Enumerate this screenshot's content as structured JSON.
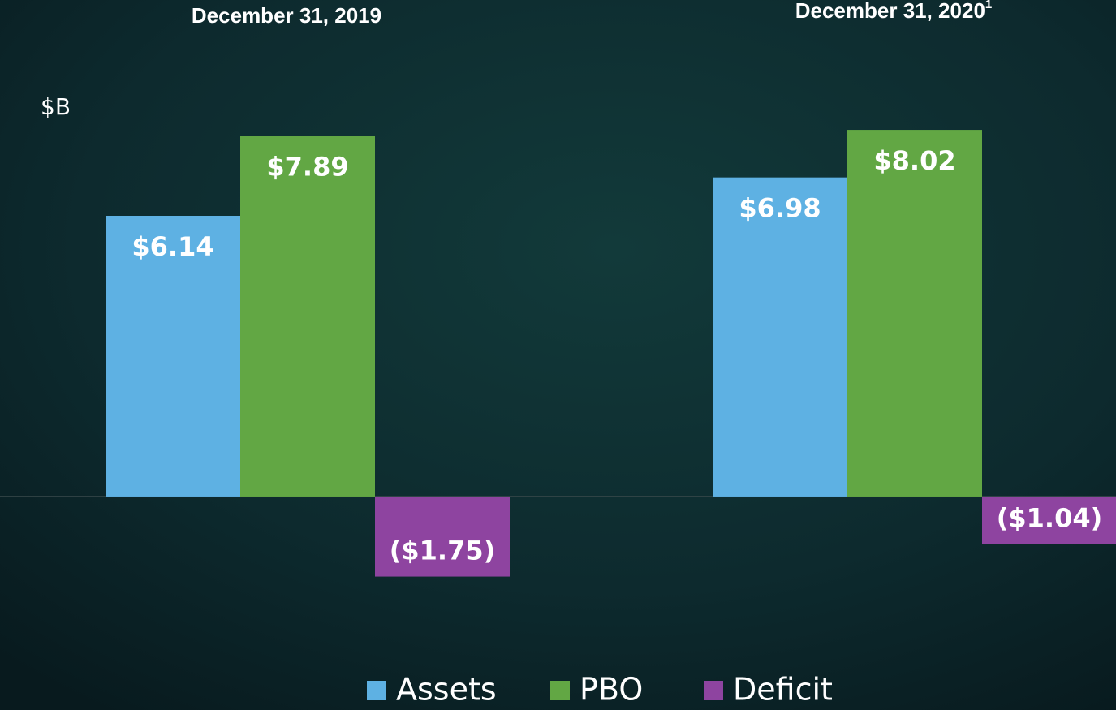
{
  "chart_data": {
    "type": "bar",
    "categories": [
      "December 31, 2019",
      "December 31, 2020"
    ],
    "category_footnotes": [
      null,
      "1"
    ],
    "y_axis_label": "$B",
    "ylim": [
      -3,
      10
    ],
    "series": [
      {
        "name": "Assets",
        "color": "#5eb1e3",
        "values": [
          6.14,
          6.98
        ],
        "value_labels": [
          "$6.14",
          "$6.98"
        ]
      },
      {
        "name": "PBO",
        "color": "#62a744",
        "values": [
          7.89,
          8.02
        ],
        "value_labels": [
          "$7.89",
          "$8.02"
        ]
      },
      {
        "name": "Deficit",
        "color": "#8e44a0",
        "values": [
          -1.75,
          -1.04
        ],
        "value_labels": [
          "($1.75)",
          "($1.04)"
        ]
      }
    ]
  }
}
